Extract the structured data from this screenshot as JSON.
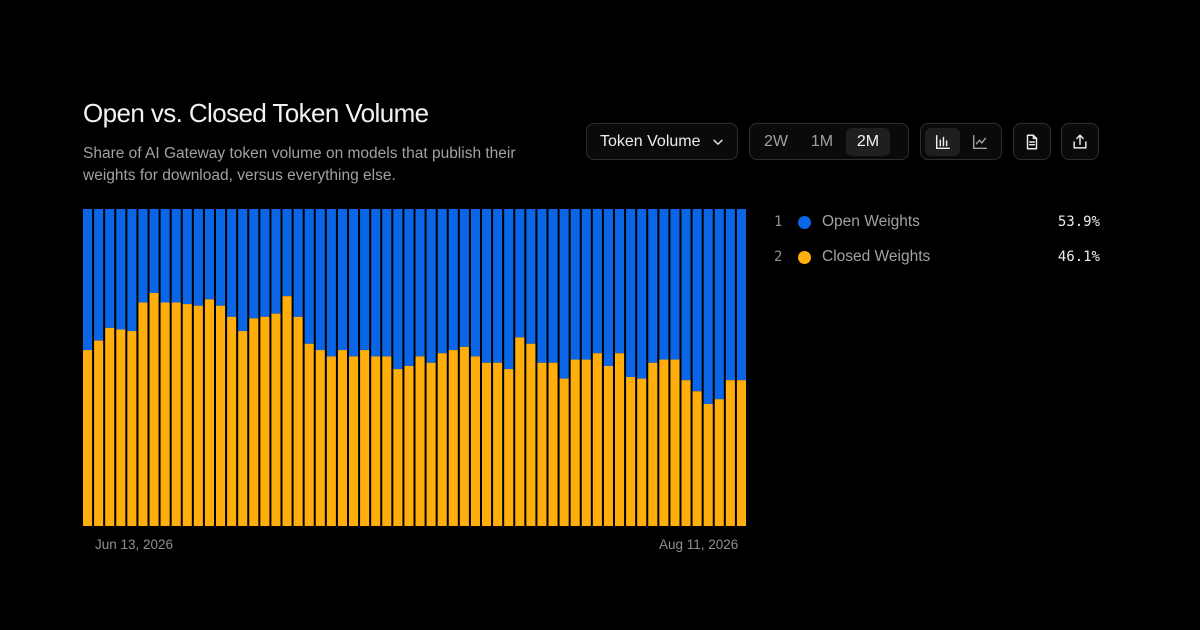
{
  "header": {
    "title": "Open vs. Closed Token Volume",
    "subtitle": "Share of AI Gateway token volume on models that publish their weights for download, versus everything else."
  },
  "controls": {
    "metric_dropdown": {
      "label": "Token Volume",
      "icon": "chevron-down-icon"
    },
    "range_tabs": [
      {
        "label": "2W",
        "active": false
      },
      {
        "label": "1M",
        "active": false
      },
      {
        "label": "2M",
        "active": true
      }
    ],
    "view_toggle": [
      {
        "icon": "bar-chart-icon",
        "active": true
      },
      {
        "icon": "line-chart-icon",
        "active": false
      }
    ],
    "docs_icon": "document-icon",
    "share_icon": "share-icon"
  },
  "legend": [
    {
      "rank": "1",
      "name": "Open Weights",
      "value": "53.9%",
      "color": "#0a66e6"
    },
    {
      "rank": "2",
      "name": "Closed Weights",
      "value": "46.1%",
      "color": "#ffae0c"
    }
  ],
  "chart_data": {
    "type": "bar",
    "stacked": true,
    "normalized": true,
    "x_start_label": "Jun 13, 2026",
    "x_end_label": "Aug 11, 2026",
    "ylim": [
      0,
      100
    ],
    "series": [
      {
        "name": "Closed Weights",
        "color": "#ffae0c",
        "values": [
          55.5,
          58.5,
          62.5,
          62,
          61.5,
          70.5,
          73.5,
          70.5,
          70.5,
          70,
          69.5,
          71.5,
          69.5,
          66,
          61.5,
          65.5,
          66,
          67,
          72.5,
          66,
          57.5,
          55.5,
          53.5,
          55.5,
          53.5,
          55.5,
          53.5,
          53.5,
          49.5,
          50.5,
          53.5,
          51.5,
          54.5,
          55.5,
          56.5,
          53.5,
          51.5,
          51.5,
          49.5,
          59.5,
          57.5,
          51.5,
          51.5,
          46.5,
          52.5,
          52.5,
          54.5,
          50.5,
          54.5,
          47,
          46.5,
          51.5,
          52.5,
          52.5,
          46,
          42.5,
          38.5,
          40,
          46,
          46
        ]
      },
      {
        "name": "Open Weights",
        "color": "#0a66e6",
        "values": [
          44.5,
          41.5,
          37.5,
          38,
          38.5,
          29.5,
          26.5,
          29.5,
          29.5,
          30,
          30.5,
          28.5,
          30.5,
          34,
          38.5,
          34.5,
          34,
          33,
          27.5,
          34,
          42.5,
          44.5,
          46.5,
          44.5,
          46.5,
          44.5,
          46.5,
          46.5,
          50.5,
          49.5,
          46.5,
          48.5,
          45.5,
          44.5,
          43.5,
          46.5,
          48.5,
          48.5,
          50.5,
          40.5,
          42.5,
          48.5,
          48.5,
          53.5,
          47.5,
          47.5,
          45.5,
          49.5,
          45.5,
          53,
          53.5,
          48.5,
          47.5,
          47.5,
          54,
          57.5,
          61.5,
          60,
          54,
          54
        ]
      }
    ]
  }
}
